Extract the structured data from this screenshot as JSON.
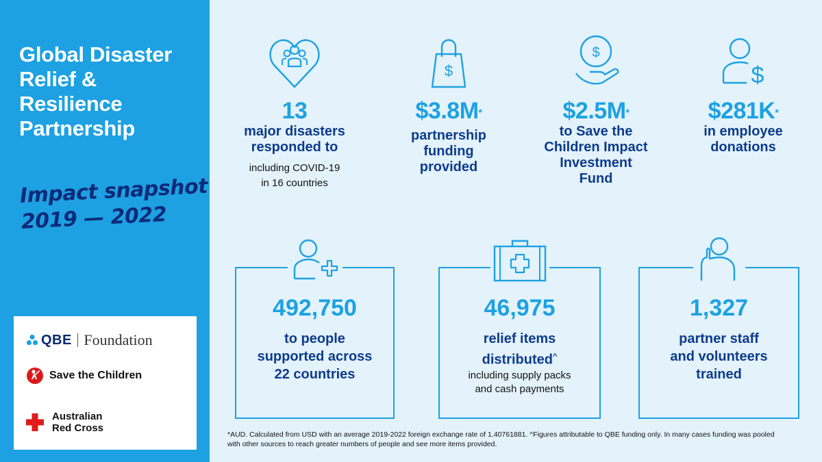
{
  "title_lines": [
    "Global Disaster",
    "Relief &",
    "Resilience",
    "Partnership"
  ],
  "snapshot_lines": [
    "Impact snapshot",
    "2019 — 2022"
  ],
  "logos": {
    "qbe": "QBE",
    "foundation": "Foundation",
    "save_children": "Save the Children",
    "red_cross_line1": "Australian",
    "red_cross_line2": "Red Cross"
  },
  "stats_top": [
    {
      "icon": "heart-people-icon",
      "value": "13",
      "label_lines": [
        "major disasters",
        "responded to"
      ],
      "sub_lines": [
        "including COVID-19",
        "in 16 countries"
      ]
    },
    {
      "icon": "shopping-bag-dollar-icon",
      "value": "$3.8M",
      "mark": "*",
      "label_lines": [
        "partnership",
        "funding",
        "provided"
      ]
    },
    {
      "icon": "hand-coin-icon",
      "value": "$2.5M",
      "mark": "*",
      "label_lines": [
        "to Save the",
        "Children Impact",
        "Investment",
        "Fund"
      ]
    },
    {
      "icon": "person-dollar-icon",
      "value": "$281K",
      "mark": "*",
      "label_lines": [
        "in employee",
        "donations"
      ]
    }
  ],
  "stats_bottom": [
    {
      "icon": "person-plus-icon",
      "value": "492,750",
      "label_lines": [
        "to people",
        "supported across",
        "22 countries"
      ]
    },
    {
      "icon": "first-aid-kit-icon",
      "value": "46,975",
      "label_lines": [
        "relief items",
        "distributed"
      ],
      "mark": "^",
      "sub_lines": [
        "including supply packs",
        "and cash payments"
      ]
    },
    {
      "icon": "person-raising-hand-icon",
      "value": "1,327",
      "label_lines": [
        "partner staff",
        "and volunteers",
        "trained"
      ]
    }
  ],
  "footnote_lines": [
    "*AUD. Calculated from USD with an average 2019-2022 foreign exchange rate of 1.40761881. ^Figures attributable to QBE funding only. In many cases funding was pooled",
    "with other sources to reach greater numbers of people and see more items provided."
  ],
  "colors": {
    "accent": "#1da1e2",
    "navy": "#0d3b8c",
    "background": "#e3f2fb"
  }
}
